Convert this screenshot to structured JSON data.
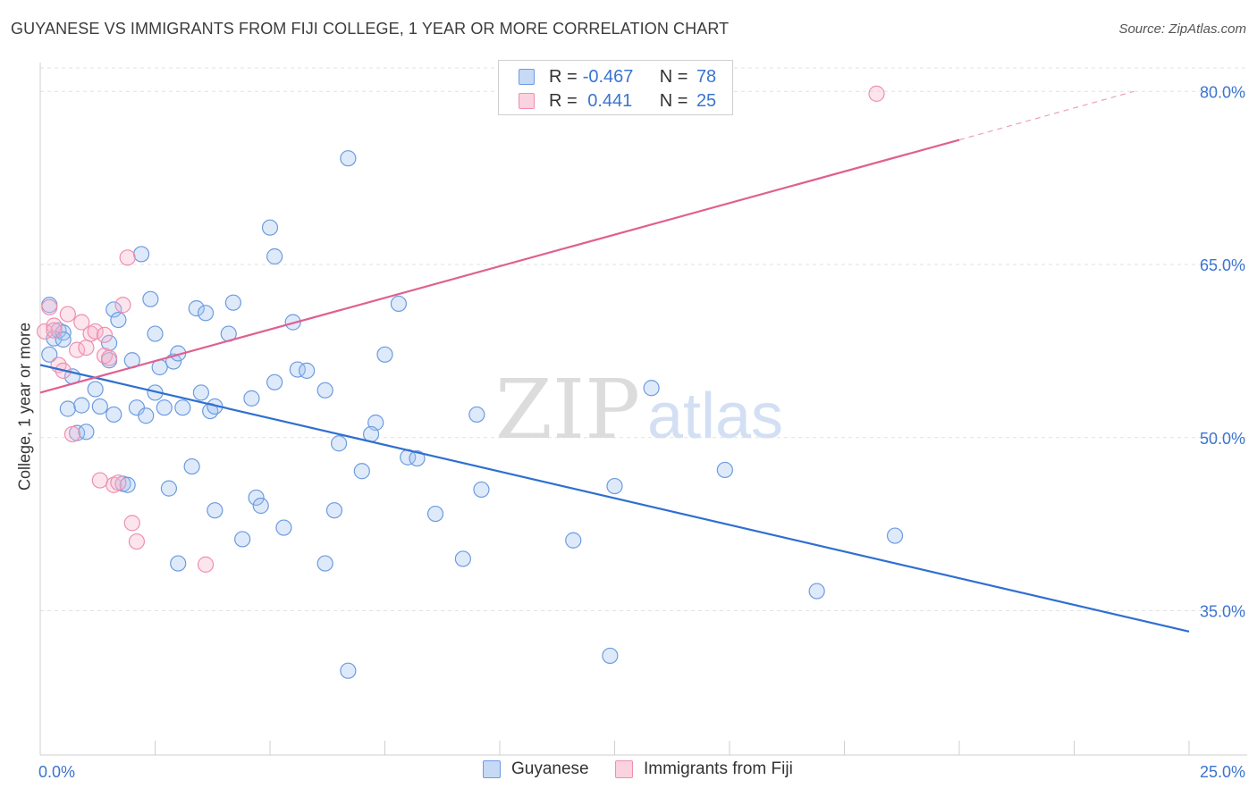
{
  "header": {
    "title": "GUYANESE VS IMMIGRANTS FROM FIJI COLLEGE, 1 YEAR OR MORE CORRELATION CHART",
    "source": "Source: ZipAtlas.com"
  },
  "watermark": {
    "zip": "ZIP",
    "atlas": "atlas"
  },
  "legend": {
    "rows": [
      {
        "r_label": "R = ",
        "r_value": "-0.467",
        "n_label": "N = ",
        "n_value": "78",
        "color": "#6c9be0"
      },
      {
        "r_label": "R = ",
        "r_value": " 0.441",
        "n_label": "N = ",
        "n_value": "25",
        "color": "#ef8fae"
      }
    ]
  },
  "bottom_legend": [
    {
      "name": "Guyanese",
      "color": "#6c9be0"
    },
    {
      "name": "Immigrants from Fiji",
      "color": "#ef8fae"
    }
  ],
  "chart_data": {
    "type": "scatter",
    "title": "GUYANESE VS IMMIGRANTS FROM FIJI COLLEGE, 1 YEAR OR MORE CORRELATION CHART",
    "xlabel": "",
    "ylabel": "College, 1 year or more",
    "xlim": [
      0,
      25
    ],
    "ylim": [
      22.5,
      82.5
    ],
    "x_tick_labels": [
      "0.0%",
      "25.0%"
    ],
    "y_ticks": [
      35,
      50,
      65,
      80
    ],
    "y_tick_labels": [
      "35.0%",
      "50.0%",
      "65.0%",
      "80.0%"
    ],
    "grid": true,
    "legend_position": "top-center",
    "series": [
      {
        "name": "Guyanese",
        "color": "#6c9be0",
        "line_color": "#2f6fd0",
        "trend": {
          "x": [
            0,
            25
          ],
          "y": [
            56.3,
            33.2
          ]
        },
        "points": [
          [
            0.2,
            61.5
          ],
          [
            0.2,
            57.2
          ],
          [
            0.3,
            58.6
          ],
          [
            0.4,
            59.3
          ],
          [
            0.5,
            59.1
          ],
          [
            0.5,
            58.5
          ],
          [
            0.7,
            55.3
          ],
          [
            0.6,
            52.5
          ],
          [
            0.8,
            50.4
          ],
          [
            0.9,
            52.8
          ],
          [
            1.0,
            50.5
          ],
          [
            1.2,
            54.2
          ],
          [
            1.3,
            52.7
          ],
          [
            1.5,
            58.2
          ],
          [
            1.5,
            56.7
          ],
          [
            1.6,
            61.1
          ],
          [
            1.7,
            60.2
          ],
          [
            1.6,
            52.0
          ],
          [
            1.8,
            46.0
          ],
          [
            1.9,
            45.9
          ],
          [
            2.0,
            56.7
          ],
          [
            2.1,
            52.6
          ],
          [
            2.2,
            65.9
          ],
          [
            2.3,
            51.9
          ],
          [
            2.4,
            62.0
          ],
          [
            2.5,
            59.0
          ],
          [
            2.6,
            56.1
          ],
          [
            2.5,
            53.9
          ],
          [
            2.7,
            52.6
          ],
          [
            2.8,
            45.6
          ],
          [
            2.9,
            56.6
          ],
          [
            3.0,
            57.3
          ],
          [
            3.1,
            52.6
          ],
          [
            3.3,
            47.5
          ],
          [
            3.4,
            61.2
          ],
          [
            3.5,
            53.9
          ],
          [
            3.6,
            60.8
          ],
          [
            3.7,
            52.3
          ],
          [
            3.8,
            52.7
          ],
          [
            3.8,
            43.7
          ],
          [
            4.1,
            59.0
          ],
          [
            4.2,
            61.7
          ],
          [
            4.4,
            41.2
          ],
          [
            4.6,
            53.4
          ],
          [
            4.7,
            44.8
          ],
          [
            4.8,
            44.1
          ],
          [
            5.0,
            68.2
          ],
          [
            5.1,
            54.8
          ],
          [
            5.1,
            65.7
          ],
          [
            5.3,
            42.2
          ],
          [
            5.5,
            60.0
          ],
          [
            5.6,
            55.9
          ],
          [
            5.8,
            55.8
          ],
          [
            6.2,
            54.1
          ],
          [
            6.4,
            43.7
          ],
          [
            6.5,
            49.5
          ],
          [
            6.7,
            74.2
          ],
          [
            7.0,
            47.1
          ],
          [
            7.3,
            51.3
          ],
          [
            7.2,
            50.3
          ],
          [
            7.5,
            57.2
          ],
          [
            7.8,
            61.6
          ],
          [
            8.0,
            48.3
          ],
          [
            8.2,
            48.2
          ],
          [
            8.6,
            43.4
          ],
          [
            6.2,
            39.1
          ],
          [
            6.7,
            29.8
          ],
          [
            9.2,
            39.5
          ],
          [
            9.5,
            52.0
          ],
          [
            9.6,
            45.5
          ],
          [
            11.6,
            41.1
          ],
          [
            12.4,
            31.1
          ],
          [
            12.5,
            45.8
          ],
          [
            13.3,
            54.3
          ],
          [
            14.9,
            47.2
          ],
          [
            16.9,
            36.7
          ],
          [
            18.6,
            41.5
          ],
          [
            3.0,
            39.1
          ]
        ]
      },
      {
        "name": "Immigrants from Fiji",
        "color": "#ef8fae",
        "line_color": "#e06090",
        "trend": {
          "x": [
            0,
            20
          ],
          "y": [
            53.9,
            75.8
          ]
        },
        "trend_dashed": {
          "x": [
            20,
            23.8
          ],
          "y": [
            75.8,
            80.0
          ]
        },
        "points": [
          [
            0.1,
            59.2
          ],
          [
            0.3,
            59.7
          ],
          [
            0.4,
            56.3
          ],
          [
            0.5,
            55.8
          ],
          [
            0.6,
            60.7
          ],
          [
            0.7,
            50.3
          ],
          [
            0.8,
            57.6
          ],
          [
            0.9,
            60.0
          ],
          [
            1.0,
            57.8
          ],
          [
            1.1,
            59.0
          ],
          [
            1.2,
            59.2
          ],
          [
            1.3,
            46.3
          ],
          [
            1.4,
            57.1
          ],
          [
            1.4,
            58.9
          ],
          [
            1.5,
            56.9
          ],
          [
            1.6,
            45.9
          ],
          [
            1.7,
            46.1
          ],
          [
            1.8,
            61.5
          ],
          [
            1.9,
            65.6
          ],
          [
            2.0,
            42.6
          ],
          [
            2.1,
            41.0
          ],
          [
            3.6,
            39.0
          ],
          [
            18.2,
            79.8
          ],
          [
            0.2,
            61.3
          ],
          [
            0.3,
            59.3
          ]
        ]
      }
    ]
  }
}
